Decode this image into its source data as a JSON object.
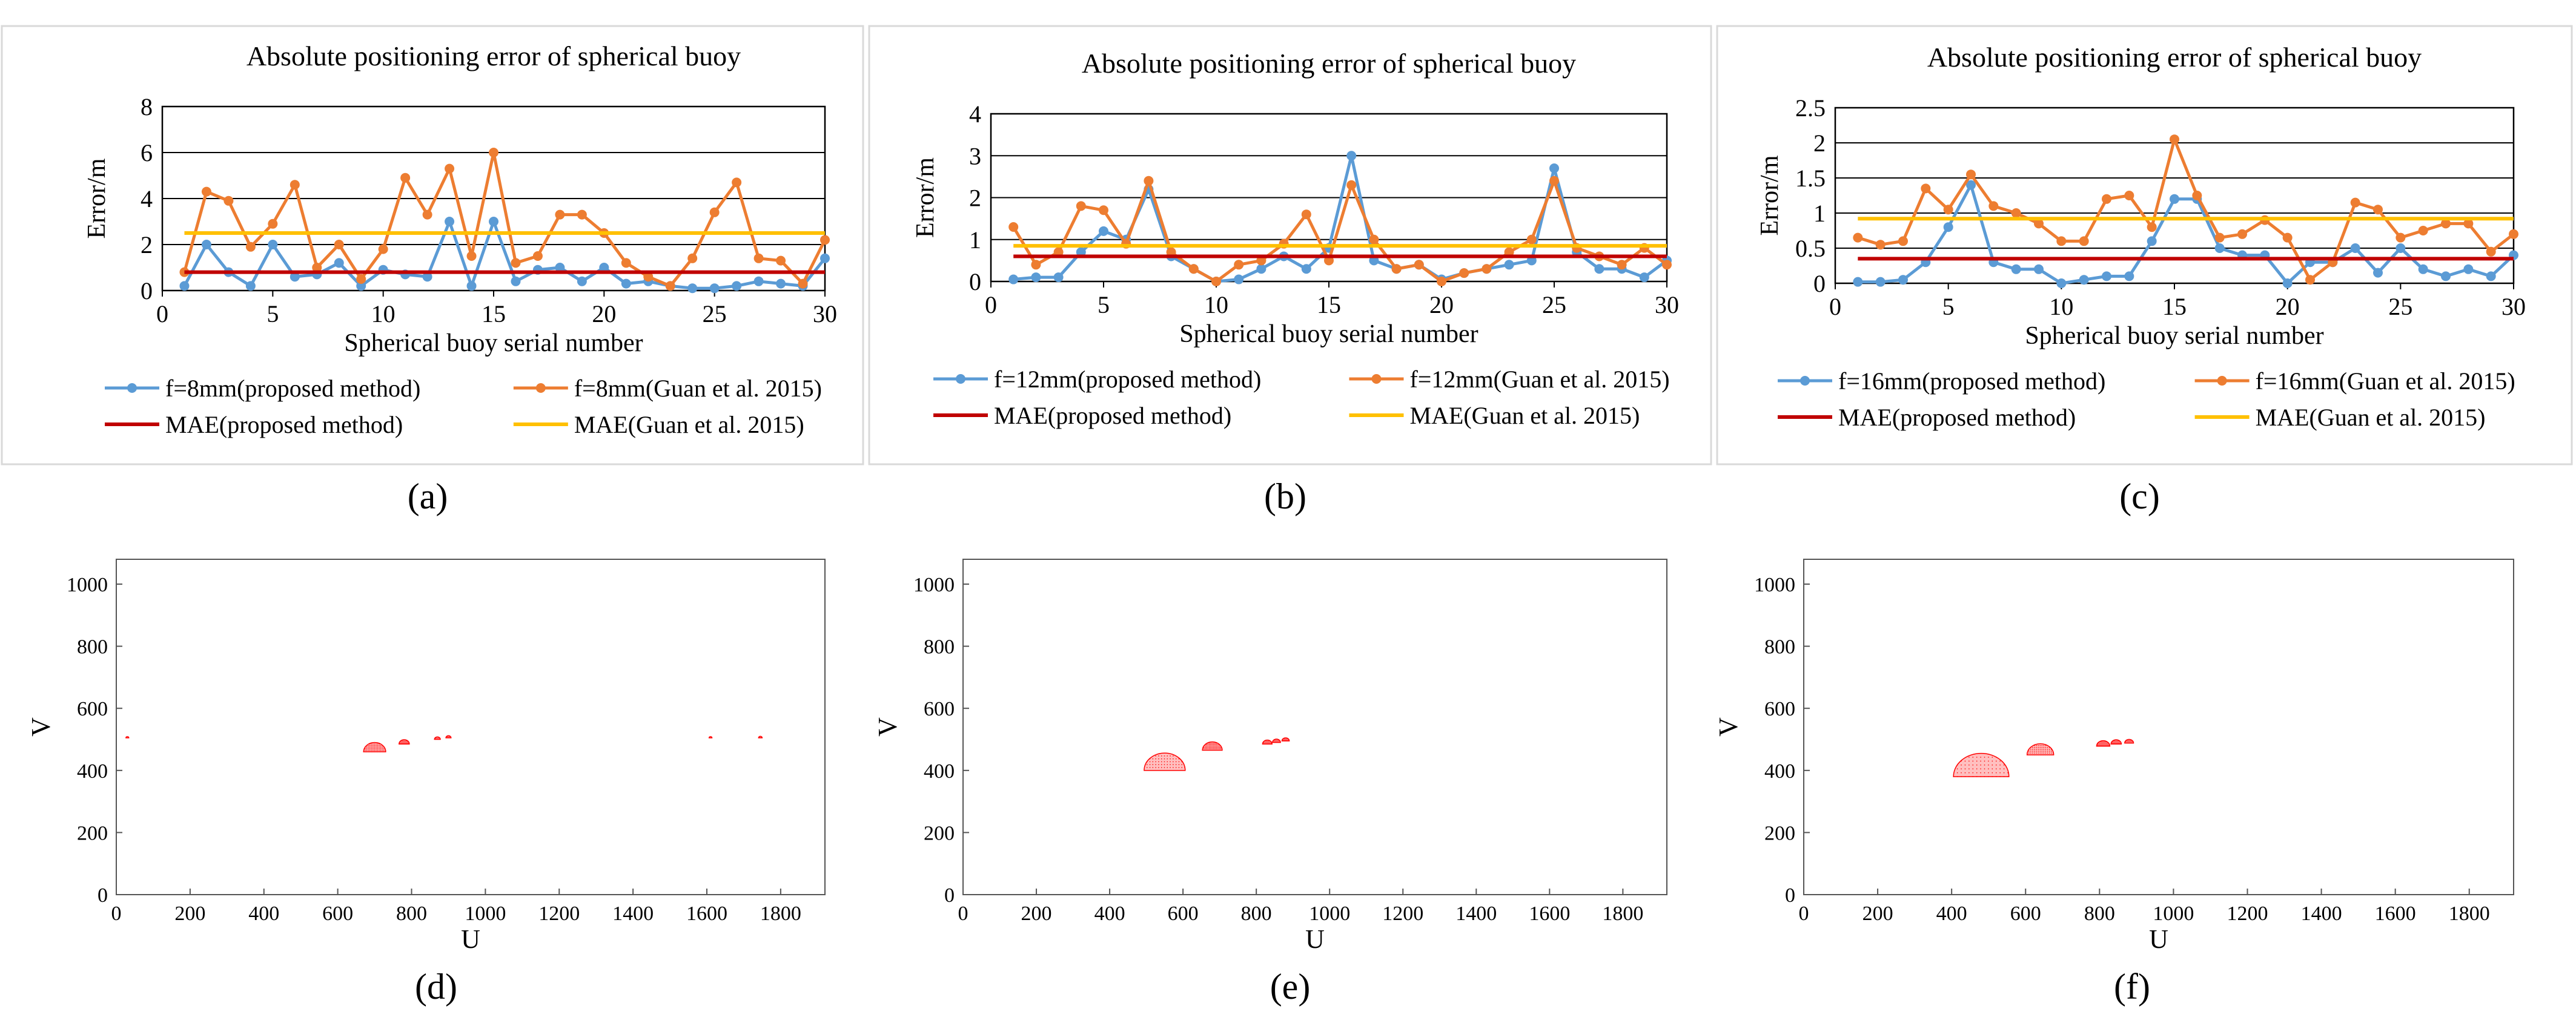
{
  "colors": {
    "proposed": "#5B9BD5",
    "guan": "#ED7D31",
    "mae_proposed": "#C00000",
    "mae_guan": "#FFC000",
    "axis": "#000000",
    "grid": "#000000",
    "scatter": "#FF0000",
    "panel_border": "#D9D9D9"
  },
  "chart_data": [
    {
      "type": "line",
      "panel_label": "(a)",
      "title": "Absolute positioning error of spherical buoy",
      "xlabel": "Spherical buoy serial number",
      "ylabel": "Error/m",
      "xlim": [
        0,
        30
      ],
      "ylim": [
        0,
        8
      ],
      "xticks": [
        "0",
        "5",
        "10",
        "15",
        "20",
        "25",
        "30"
      ],
      "yticks": [
        "0",
        "2",
        "4",
        "6",
        "8"
      ],
      "x": [
        1,
        2,
        3,
        4,
        5,
        6,
        7,
        8,
        9,
        10,
        11,
        12,
        13,
        14,
        15,
        16,
        17,
        18,
        19,
        20,
        21,
        22,
        23,
        24,
        25,
        26,
        27,
        28,
        29,
        30
      ],
      "series": [
        {
          "name": "f=8mm(proposed method)",
          "values": [
            0.2,
            2.0,
            0.8,
            0.2,
            2.0,
            0.6,
            0.7,
            1.2,
            0.2,
            0.9,
            0.7,
            0.6,
            3.0,
            0.2,
            3.0,
            0.4,
            0.9,
            1.0,
            0.4,
            1.0,
            0.3,
            0.4,
            0.2,
            0.1,
            0.1,
            0.2,
            0.4,
            0.3,
            0.2,
            1.4
          ]
        },
        {
          "name": "f=8mm(Guan et al. 2015)",
          "values": [
            0.8,
            4.3,
            3.9,
            1.9,
            2.9,
            4.6,
            1.0,
            2.0,
            0.5,
            1.8,
            4.9,
            3.3,
            5.3,
            1.5,
            6.0,
            1.2,
            1.5,
            3.3,
            3.3,
            2.5,
            1.2,
            0.6,
            0.2,
            1.4,
            3.4,
            4.7,
            1.4,
            1.3,
            0.3,
            2.2
          ]
        },
        {
          "name": "MAE(proposed method)",
          "constant": 0.8
        },
        {
          "name": "MAE(Guan et al. 2015)",
          "constant": 2.5
        }
      ]
    },
    {
      "type": "line",
      "panel_label": "(b)",
      "title": "Absolute positioning error of spherical buoy",
      "xlabel": "Spherical buoy serial number",
      "ylabel": "Error/m",
      "xlim": [
        0,
        30
      ],
      "ylim": [
        0,
        4
      ],
      "xticks": [
        "0",
        "5",
        "10",
        "15",
        "20",
        "25",
        "30"
      ],
      "yticks": [
        "0",
        "1",
        "2",
        "3",
        "4"
      ],
      "x": [
        1,
        2,
        3,
        4,
        5,
        6,
        7,
        8,
        9,
        10,
        11,
        12,
        13,
        14,
        15,
        16,
        17,
        18,
        19,
        20,
        21,
        22,
        23,
        24,
        25,
        26,
        27,
        28,
        29,
        30
      ],
      "series": [
        {
          "name": "f=12mm(proposed method)",
          "values": [
            0.05,
            0.1,
            0.1,
            0.7,
            1.2,
            1.0,
            2.2,
            0.6,
            0.3,
            0.0,
            0.05,
            0.3,
            0.6,
            0.3,
            0.8,
            3.0,
            0.5,
            0.3,
            0.4,
            0.05,
            0.2,
            0.3,
            0.4,
            0.5,
            2.7,
            0.7,
            0.3,
            0.3,
            0.1,
            0.5
          ]
        },
        {
          "name": "f=12mm(Guan et al. 2015)",
          "values": [
            1.3,
            0.4,
            0.7,
            1.8,
            1.7,
            0.9,
            2.4,
            0.7,
            0.3,
            0.0,
            0.4,
            0.5,
            0.9,
            1.6,
            0.5,
            2.3,
            1.0,
            0.3,
            0.4,
            0.0,
            0.2,
            0.3,
            0.7,
            1.0,
            2.4,
            0.8,
            0.6,
            0.4,
            0.8,
            0.4
          ]
        },
        {
          "name": "MAE(proposed method)",
          "constant": 0.6
        },
        {
          "name": "MAE(Guan et al. 2015)",
          "constant": 0.85
        }
      ]
    },
    {
      "type": "line",
      "panel_label": "(c)",
      "title": "Absolute positioning error of spherical buoy",
      "xlabel": "Spherical buoy serial number",
      "ylabel": "Error/m",
      "xlim": [
        0,
        30
      ],
      "ylim": [
        0,
        2.5
      ],
      "xticks": [
        "0",
        "5",
        "10",
        "15",
        "20",
        "25",
        "30"
      ],
      "yticks": [
        "0",
        "0.5",
        "1",
        "1.5",
        "2",
        "2.5"
      ],
      "x": [
        1,
        2,
        3,
        4,
        5,
        6,
        7,
        8,
        9,
        10,
        11,
        12,
        13,
        14,
        15,
        16,
        17,
        18,
        19,
        20,
        21,
        22,
        23,
        24,
        25,
        26,
        27,
        28,
        29,
        30
      ],
      "series": [
        {
          "name": "f=16mm(proposed method)",
          "values": [
            0.02,
            0.02,
            0.05,
            0.3,
            0.8,
            1.4,
            0.3,
            0.2,
            0.2,
            0.0,
            0.05,
            0.1,
            0.1,
            0.6,
            1.2,
            1.2,
            0.5,
            0.4,
            0.4,
            0.0,
            0.3,
            0.3,
            0.5,
            0.15,
            0.5,
            0.2,
            0.1,
            0.2,
            0.1,
            0.4
          ]
        },
        {
          "name": "f=16mm(Guan et al. 2015)",
          "values": [
            0.65,
            0.55,
            0.6,
            1.35,
            1.05,
            1.55,
            1.1,
            1.0,
            0.85,
            0.6,
            0.6,
            1.2,
            1.25,
            0.8,
            2.05,
            1.25,
            0.65,
            0.7,
            0.9,
            0.65,
            0.05,
            0.3,
            1.15,
            1.05,
            0.65,
            0.75,
            0.85,
            0.85,
            0.45,
            0.7
          ]
        },
        {
          "name": "MAE(proposed method)",
          "constant": 0.35
        },
        {
          "name": "MAE(Guan et al. 2015)",
          "constant": 0.92
        }
      ]
    },
    {
      "type": "scatter",
      "panel_label": "(d)",
      "xlabel": "U",
      "ylabel": "V",
      "xlim": [
        0,
        1920
      ],
      "ylim": [
        0,
        1080
      ],
      "xticks": [
        "0",
        "200",
        "400",
        "600",
        "800",
        "1000",
        "1200",
        "1400",
        "1600",
        "1800"
      ],
      "yticks": [
        "0",
        "200",
        "400",
        "600",
        "800",
        "1000"
      ],
      "buoys": [
        {
          "u": 30,
          "v": 505,
          "r": 4
        },
        {
          "u": 700,
          "v": 460,
          "r": 30
        },
        {
          "u": 780,
          "v": 485,
          "r": 14
        },
        {
          "u": 870,
          "v": 500,
          "r": 8
        },
        {
          "u": 900,
          "v": 505,
          "r": 7
        },
        {
          "u": 1610,
          "v": 505,
          "r": 4
        },
        {
          "u": 1745,
          "v": 505,
          "r": 5
        }
      ]
    },
    {
      "type": "scatter",
      "panel_label": "(e)",
      "xlabel": "U",
      "ylabel": "V",
      "xlim": [
        0,
        1920
      ],
      "ylim": [
        0,
        1080
      ],
      "xticks": [
        "0",
        "200",
        "400",
        "600",
        "800",
        "1000",
        "1200",
        "1400",
        "1600",
        "1800"
      ],
      "yticks": [
        "0",
        "200",
        "400",
        "600",
        "800",
        "1000"
      ],
      "buoys": [
        {
          "u": 550,
          "v": 400,
          "r": 56
        },
        {
          "u": 680,
          "v": 465,
          "r": 27
        },
        {
          "u": 830,
          "v": 485,
          "r": 13
        },
        {
          "u": 855,
          "v": 490,
          "r": 11
        },
        {
          "u": 880,
          "v": 495,
          "r": 10
        }
      ]
    },
    {
      "type": "scatter",
      "panel_label": "(f)",
      "xlabel": "U",
      "ylabel": "V",
      "xlim": [
        0,
        1920
      ],
      "ylim": [
        0,
        1080
      ],
      "xticks": [
        "0",
        "200",
        "400",
        "600",
        "800",
        "1000",
        "1200",
        "1400",
        "1600",
        "1800"
      ],
      "yticks": [
        "0",
        "200",
        "400",
        "600",
        "800",
        "1000"
      ],
      "buoys": [
        {
          "u": 480,
          "v": 380,
          "r": 75
        },
        {
          "u": 640,
          "v": 450,
          "r": 36
        },
        {
          "u": 810,
          "v": 478,
          "r": 18
        },
        {
          "u": 845,
          "v": 485,
          "r": 14
        },
        {
          "u": 880,
          "v": 488,
          "r": 12
        }
      ]
    }
  ]
}
